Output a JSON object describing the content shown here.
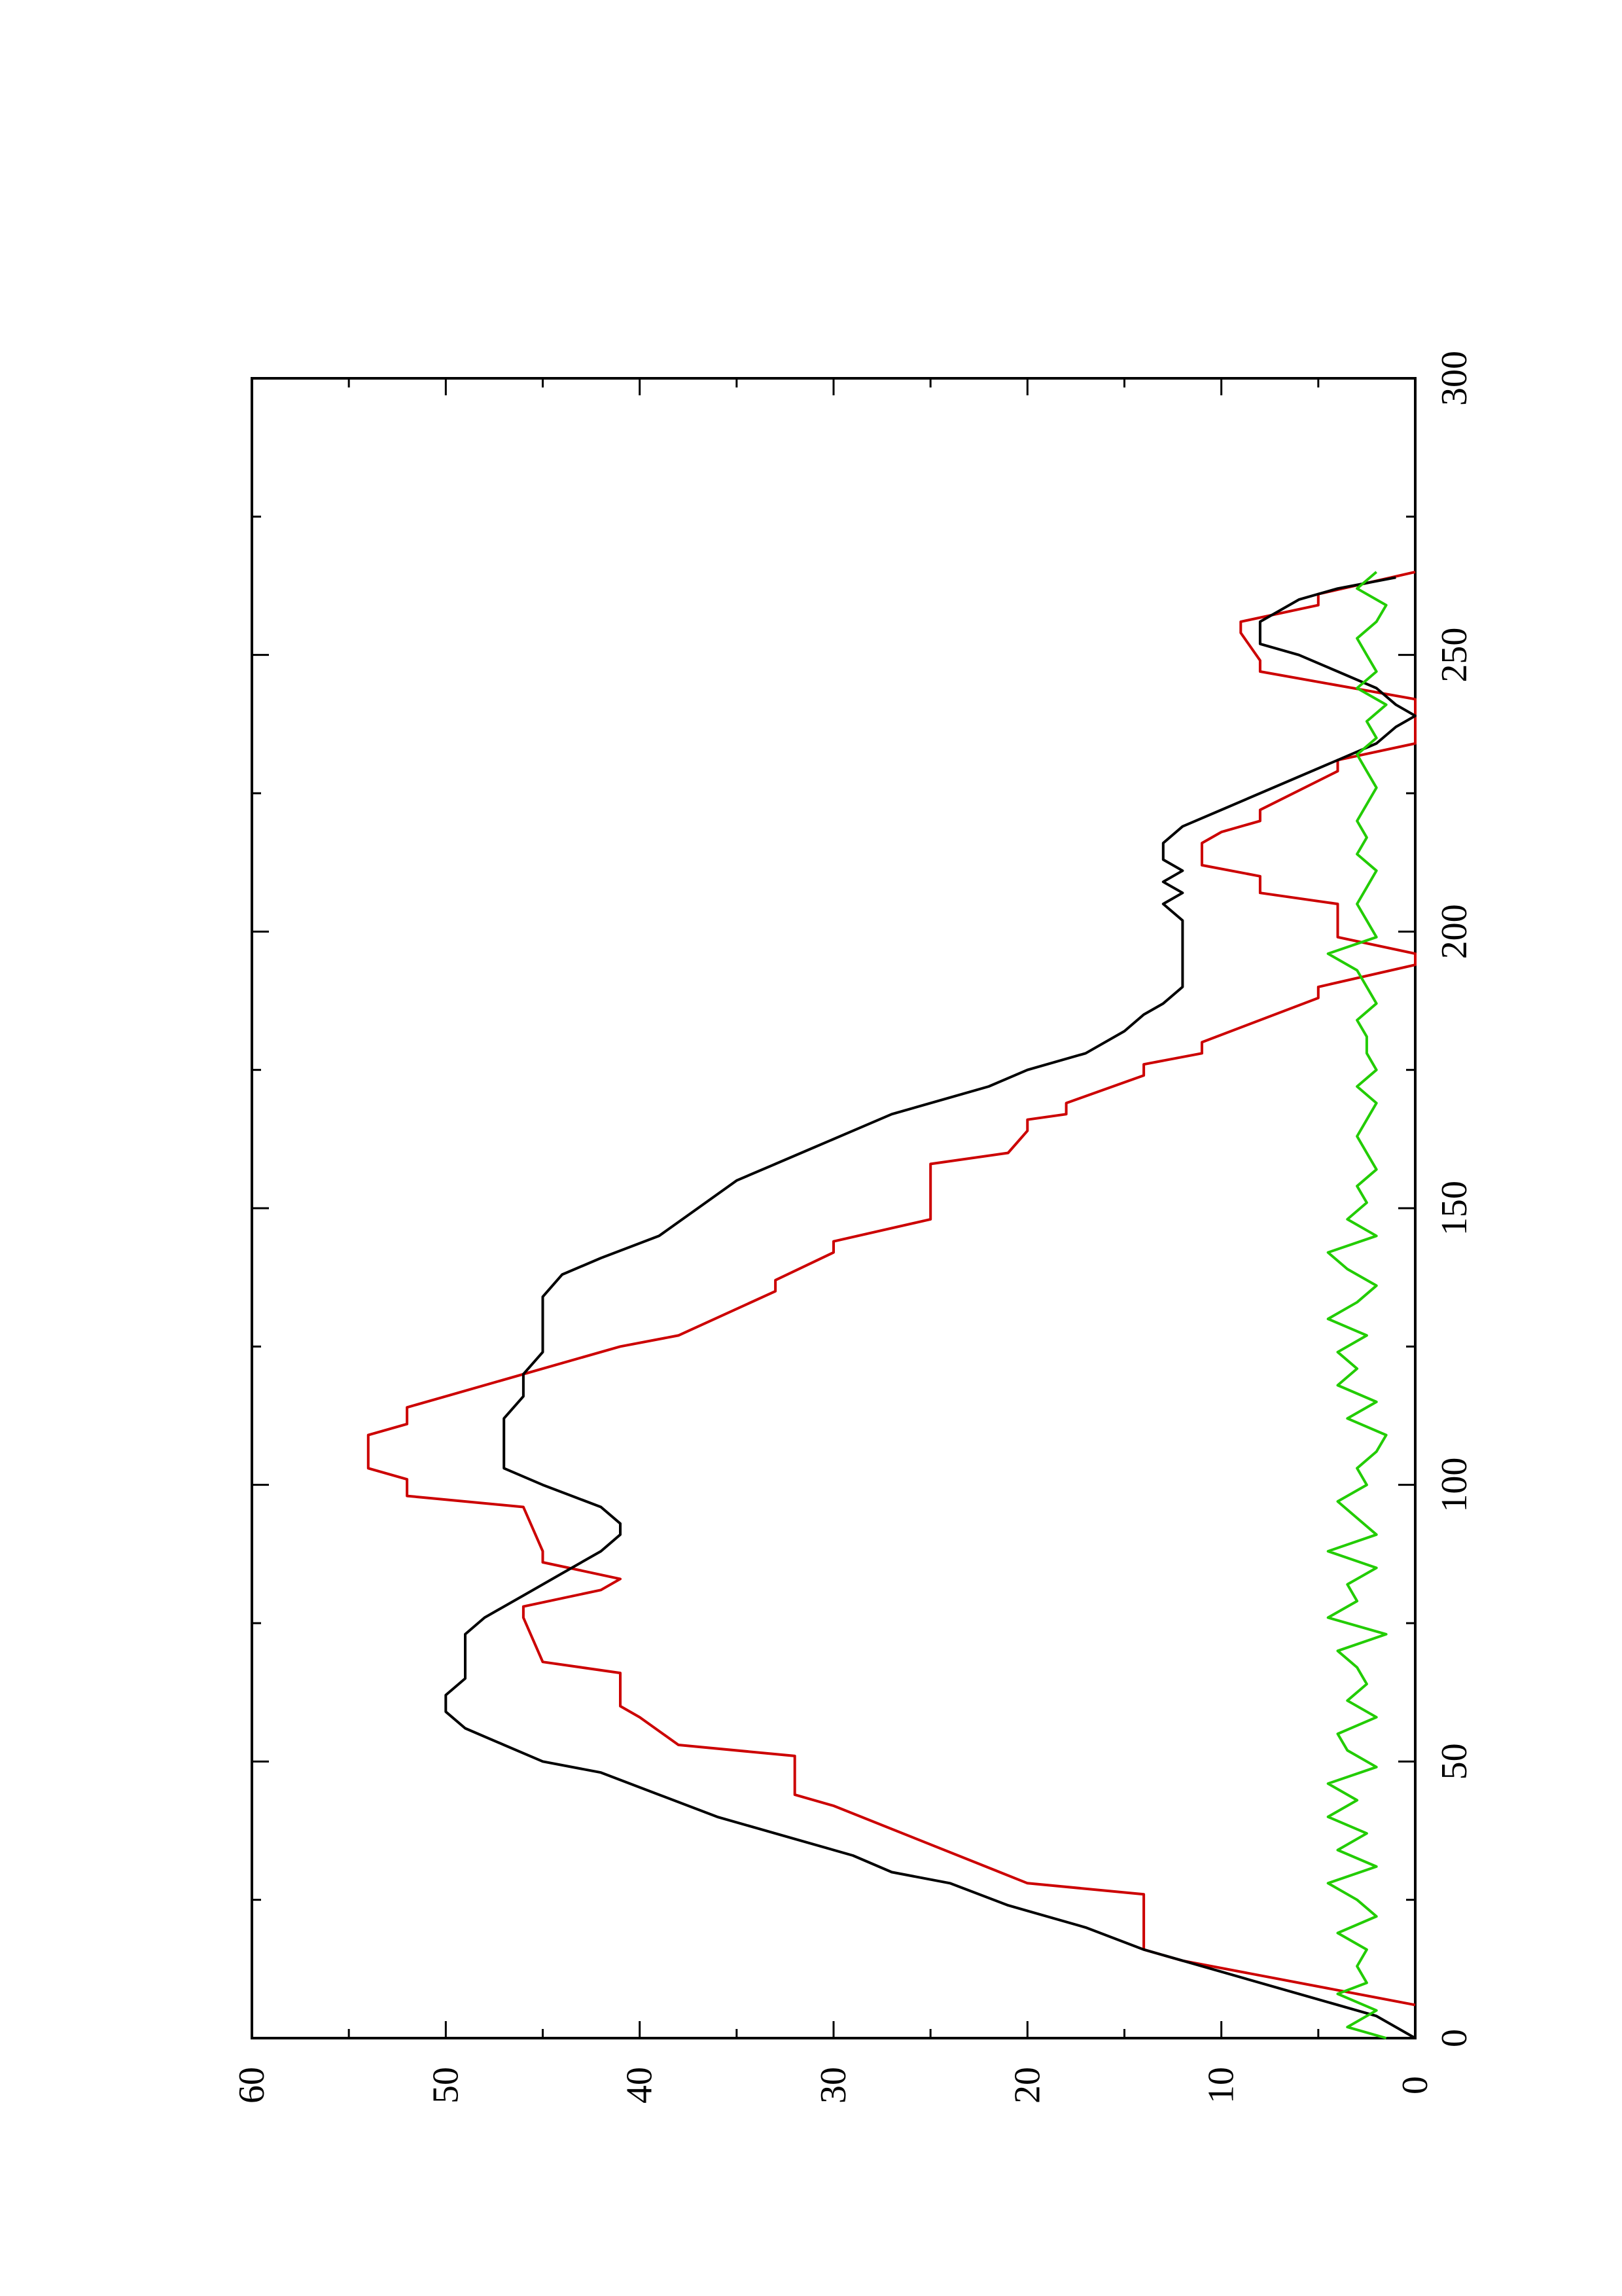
{
  "chart_data": {
    "type": "line",
    "orientation": "rotated-90-ccw",
    "title": "",
    "xlabel": "",
    "ylabel": "",
    "xlim": [
      0,
      300
    ],
    "ylim": [
      0,
      60
    ],
    "x_ticks": [
      "0",
      "50",
      "100",
      "150",
      "200",
      "250",
      "300"
    ],
    "y_ticks": [
      "0",
      "10",
      "20",
      "30",
      "40",
      "50",
      "60"
    ],
    "grid": false,
    "legend": "none",
    "series": [
      {
        "color": "#cc0000",
        "x": [
          6,
          14,
          16,
          26,
          28,
          42,
          44,
          51,
          53,
          58,
          60,
          66,
          68,
          76,
          78,
          81,
          83,
          86,
          88,
          96,
          98,
          101,
          103,
          109,
          111,
          114,
          116,
          125,
          127,
          135,
          137,
          142,
          144,
          148,
          150,
          158,
          160,
          164,
          166,
          167,
          169,
          174,
          176,
          178,
          180,
          188,
          190,
          194,
          196,
          199,
          201,
          205,
          207,
          210,
          212,
          216,
          218,
          220,
          222,
          229,
          231,
          234,
          242,
          247,
          249,
          254,
          256,
          259,
          261,
          265
        ],
        "y": [
          0,
          12,
          14,
          14,
          20,
          30,
          32,
          32,
          38,
          40,
          41,
          41,
          45,
          46,
          46,
          42,
          41,
          45,
          45,
          46,
          52,
          52,
          54,
          54,
          52,
          52,
          50,
          41,
          38,
          33,
          33,
          30,
          30,
          25,
          25,
          25,
          21,
          20,
          20,
          18,
          18,
          14,
          14,
          11,
          11,
          5,
          5,
          0,
          0,
          4,
          4,
          4,
          8,
          8,
          11,
          11,
          10,
          8,
          8,
          4,
          4,
          0,
          0,
          8,
          8,
          9,
          9,
          5,
          5,
          0
        ]
      },
      {
        "color": "#000000",
        "x": [
          0,
          4,
          8,
          12,
          16,
          20,
          24,
          28,
          30,
          33,
          36,
          40,
          44,
          48,
          50,
          53,
          56,
          59,
          62,
          65,
          67,
          70,
          73,
          76,
          80,
          84,
          88,
          91,
          93,
          96,
          100,
          103,
          105,
          106,
          108,
          112,
          116,
          120,
          124,
          128,
          131,
          134,
          138,
          141,
          145,
          150,
          155,
          158,
          161,
          164,
          167,
          170,
          172,
          175,
          178,
          182,
          185,
          187,
          190,
          193,
          196,
          199,
          202,
          205,
          207,
          209,
          211,
          213,
          216,
          219,
          222,
          225,
          228,
          231,
          234,
          237,
          239,
          241,
          244,
          247,
          250,
          252,
          254,
          256,
          258,
          260,
          262,
          264
        ],
        "y": [
          0,
          2,
          6,
          10,
          14,
          17,
          21,
          24,
          27,
          29,
          32,
          36,
          39,
          42,
          45,
          47,
          49,
          50,
          50,
          49,
          49,
          49,
          49,
          48,
          46,
          44,
          42,
          41,
          41,
          42,
          45,
          47,
          47,
          47,
          47,
          47,
          46,
          46,
          45,
          45,
          45,
          45,
          44,
          42,
          39,
          37,
          35,
          33,
          31,
          29,
          27,
          24,
          22,
          20,
          17,
          15,
          14,
          13,
          12,
          12,
          12,
          12,
          12,
          13,
          12,
          13,
          12,
          13,
          13,
          12,
          10,
          8,
          6,
          4,
          2,
          1,
          0,
          1,
          2,
          4,
          6,
          8,
          8,
          8,
          7,
          6,
          4,
          1
        ]
      },
      {
        "color": "#22cc00",
        "x": [
          0,
          2,
          5,
          8,
          10,
          13,
          16,
          19,
          22,
          25,
          28,
          31,
          34,
          37,
          40,
          43,
          46,
          49,
          52,
          55,
          58,
          61,
          64,
          67,
          70,
          73,
          76,
          79,
          82,
          85,
          88,
          91,
          94,
          97,
          100,
          103,
          106,
          109,
          112,
          115,
          118,
          121,
          124,
          127,
          130,
          133,
          136,
          139,
          142,
          145,
          148,
          151,
          154,
          157,
          160,
          163,
          166,
          169,
          172,
          175,
          178,
          181,
          184,
          187,
          190,
          193,
          196,
          199,
          202,
          205,
          208,
          211,
          214,
          217,
          220,
          223,
          226,
          229,
          232,
          235,
          238,
          241,
          244,
          247,
          250,
          253,
          256,
          259,
          262,
          265
        ],
        "y": [
          1.5,
          3.5,
          2.0,
          4.0,
          2.5,
          3.0,
          2.5,
          4.0,
          2.0,
          3.0,
          4.5,
          2.0,
          4.0,
          2.5,
          4.5,
          3.0,
          4.5,
          2.0,
          3.5,
          4.0,
          2.0,
          3.5,
          2.5,
          3.0,
          4.0,
          1.5,
          4.5,
          3.0,
          3.5,
          2.0,
          4.5,
          2.0,
          3.0,
          4.0,
          2.5,
          3.0,
          2.0,
          1.5,
          3.5,
          2.0,
          4.0,
          3.0,
          4.0,
          2.5,
          4.5,
          3.0,
          2.0,
          3.5,
          4.5,
          2.0,
          3.5,
          2.5,
          3.0,
          2.0,
          2.5,
          3.0,
          2.5,
          2.0,
          3.0,
          2.0,
          2.5,
          2.5,
          3.0,
          2.0,
          2.5,
          3.0,
          4.5,
          2.0,
          2.5,
          3.0,
          2.5,
          2.0,
          3.0,
          2.5,
          3.0,
          2.5,
          2.0,
          2.5,
          3.0,
          2.0,
          2.5,
          1.5,
          3.0,
          2.0,
          2.5,
          3.0,
          2.0,
          1.5,
          3.0,
          2.0
        ]
      }
    ]
  }
}
